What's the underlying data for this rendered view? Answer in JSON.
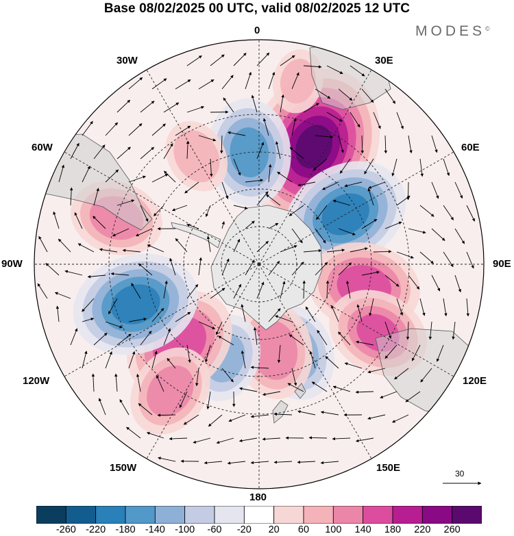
{
  "title": "Base 08/02/2025 00 UTC, valid 08/02/2025 12 UTC",
  "brand": {
    "name": "MODES",
    "mark": "©"
  },
  "longitude_labels": {
    "top": "0",
    "top_left": "30W",
    "top_right": "30E",
    "upper_left": "60W",
    "upper_right": "60E",
    "left": "90W",
    "right": "90E",
    "lower_left": "120W",
    "lower_right": "120E",
    "bottom_left": "150W",
    "bottom_right": "150E",
    "bottom": "180"
  },
  "reference_vector": {
    "label": "30"
  },
  "colorbar": {
    "tick_labels": [
      "-260",
      "-220",
      "-180",
      "-140",
      "-100",
      "-60",
      "-20",
      "20",
      "60",
      "100",
      "140",
      "180",
      "220",
      "260"
    ],
    "colors": [
      "#0b3d5e",
      "#135d8e",
      "#2a80b8",
      "#5298c8",
      "#8fb0d6",
      "#c3cce3",
      "#e5e5f0",
      "#ffffff",
      "#f7d7d5",
      "#f3b3b9",
      "#ec86a8",
      "#dc4d9f",
      "#b71e91",
      "#8a0a86",
      "#5a0a6e"
    ]
  },
  "anomaly_centers": [
    {
      "lon": 25,
      "lat": -38,
      "value": 260
    },
    {
      "lon": -5,
      "lat": -45,
      "value": -150
    },
    {
      "lon": 60,
      "lat": -50,
      "value": -190
    },
    {
      "lon": 102,
      "lat": -47,
      "value": 160
    },
    {
      "lon": 120,
      "lat": -35,
      "value": 140
    },
    {
      "lon": 158,
      "lat": -52,
      "value": -130
    },
    {
      "lon": 170,
      "lat": -55,
      "value": 130
    },
    {
      "lon": -160,
      "lat": -50,
      "value": -110
    },
    {
      "lon": -135,
      "lat": -45,
      "value": 170
    },
    {
      "lon": -145,
      "lat": -28,
      "value": 120
    },
    {
      "lon": -108,
      "lat": -38,
      "value": -190
    },
    {
      "lon": -72,
      "lat": -30,
      "value": 120
    },
    {
      "lon": -30,
      "lat": -40,
      "value": 80
    },
    {
      "lon": 12,
      "lat": -15,
      "value": 60
    }
  ]
}
